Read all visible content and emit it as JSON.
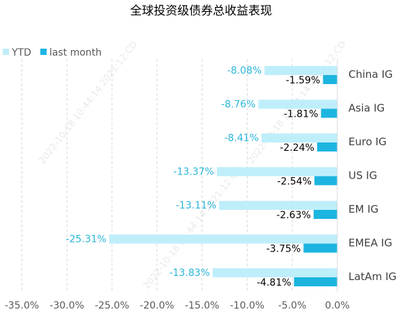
{
  "chart_data": {
    "type": "bar",
    "orientation": "horizontal",
    "title": "全球投资级债券总收益表现",
    "categories": [
      "China IG",
      "Asia IG",
      "Euro IG",
      "US IG",
      "EM IG",
      "EMEA IG",
      "LatAm IG"
    ],
    "series": [
      {
        "name": "YTD",
        "values": [
          -8.08,
          -8.76,
          -8.41,
          -13.37,
          -13.11,
          -25.31,
          -13.83
        ],
        "labels": [
          "-8.08%",
          "-8.76%",
          "-8.41%",
          "-13.37%",
          "-13.11%",
          "-25.31%",
          "-13.83%"
        ],
        "color": "#bfeefb",
        "label_color": "#29b6d8"
      },
      {
        "name": "last month",
        "values": [
          -1.59,
          -1.81,
          -2.24,
          -2.54,
          -2.63,
          -3.75,
          -4.81
        ],
        "labels": [
          "-1.59%",
          "-1.81%",
          "-2.24%",
          "-2.54%",
          "-2.63%",
          "-3.75%",
          "-4.81%"
        ],
        "color": "#1cb5e0",
        "label_color": "#000000"
      }
    ],
    "xlim": [
      -35,
      0
    ],
    "xticks": [
      -35,
      -30,
      -25,
      -20,
      -15,
      -10,
      -5,
      0
    ],
    "xtick_labels": [
      "-35.0%",
      "-30.0%",
      "-25.0%",
      "-20.0%",
      "-15.0%",
      "-10.0%",
      "-5.0%",
      "0.0%"
    ],
    "grid": "vertical-dashed",
    "legend": "top-left",
    "watermark": "2022-10-18 10:44:14 2021:12:CD"
  }
}
